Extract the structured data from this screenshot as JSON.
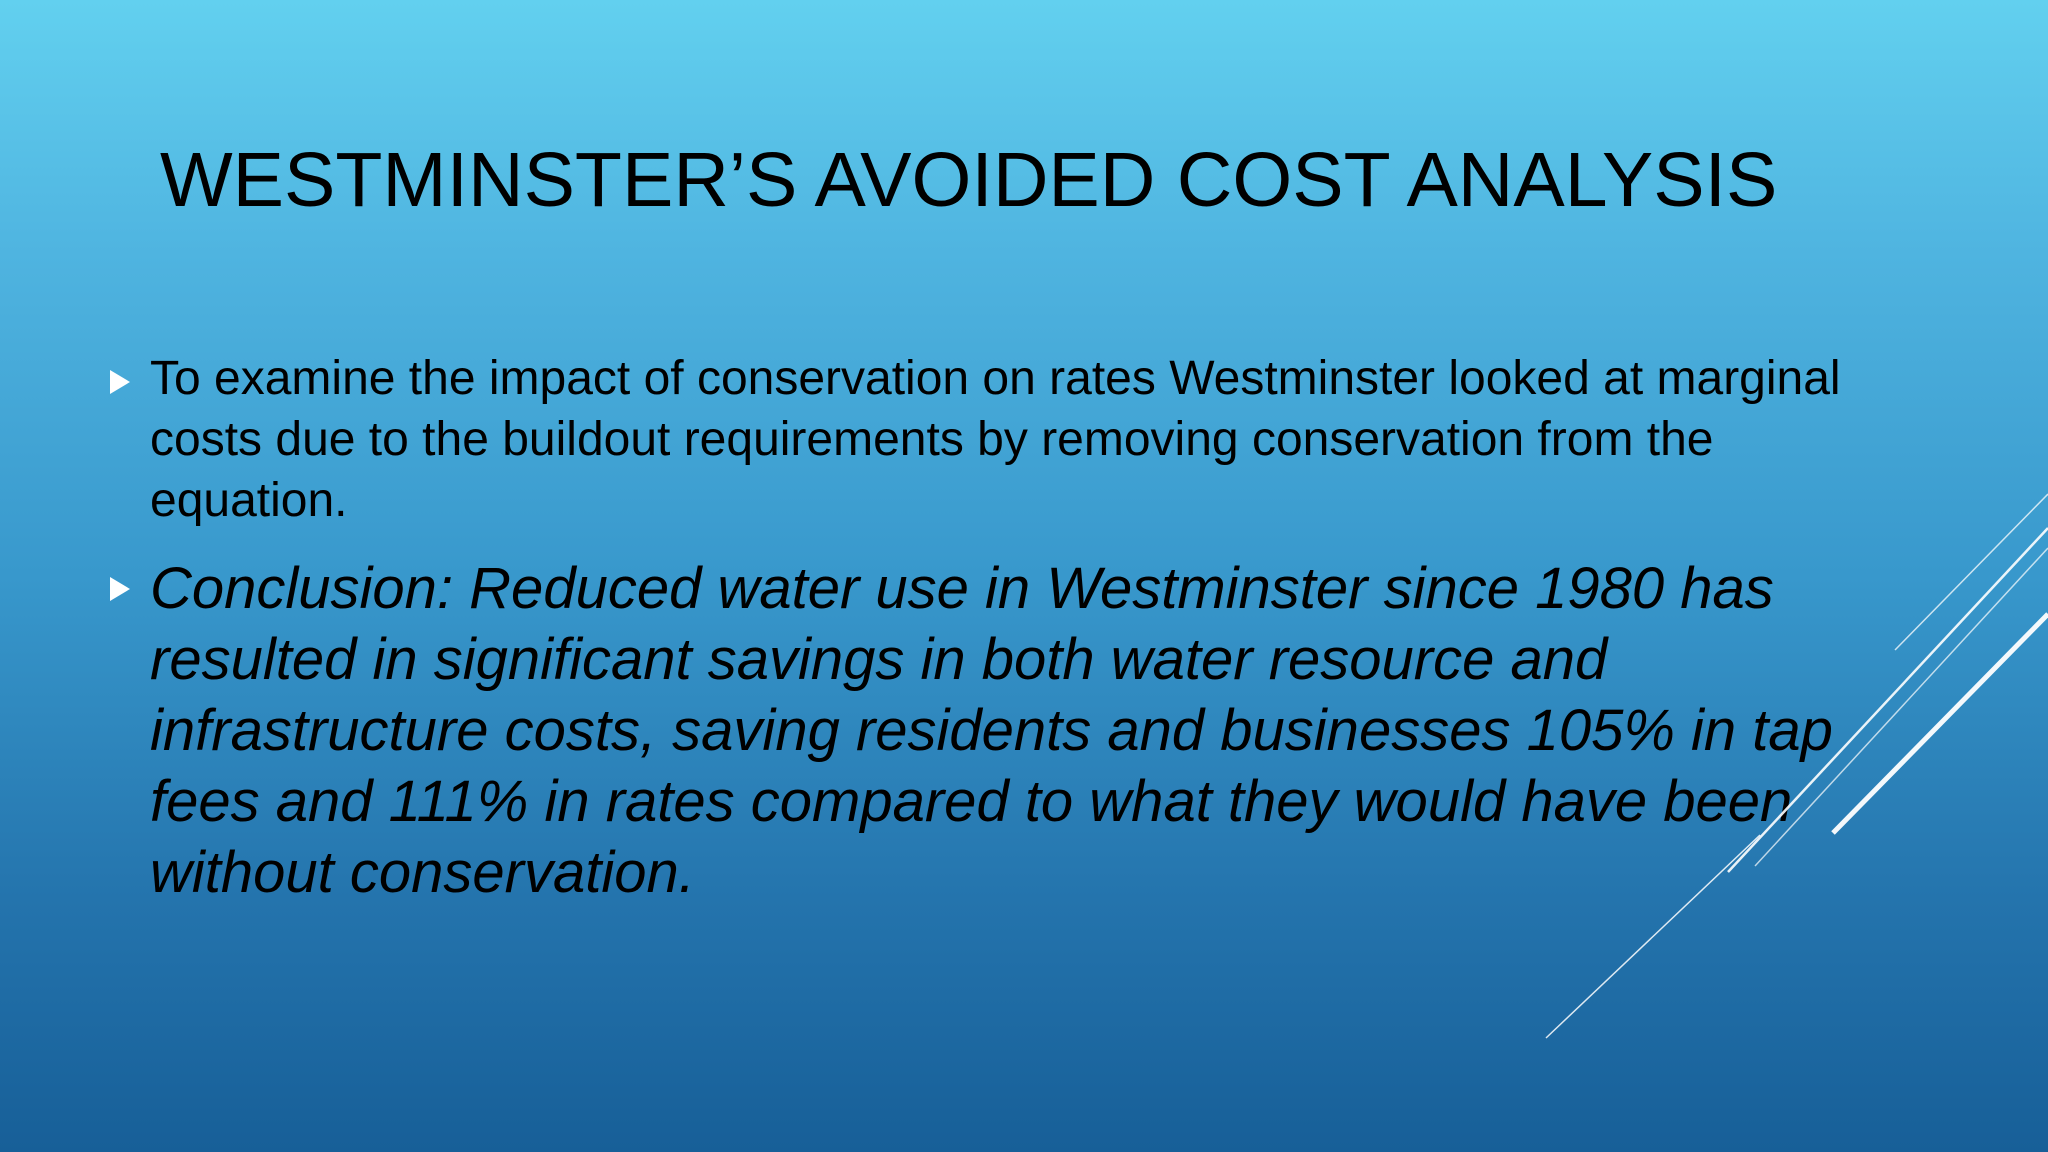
{
  "slide": {
    "title": "WESTMINSTER’S AVOIDED COST ANALYSIS",
    "bullets": [
      {
        "text": "To examine the impact of conservation on rates Westminster looked at marginal costs due to the buildout requirements by removing conservation from the equation."
      },
      {
        "text": "Conclusion: Reduced water use in Westminster since 1980 has resulted in significant savings in both water resource and infrastructure costs, saving residents and businesses 105% in tap fees and 111% in rates compared to what they would have been without conservation."
      }
    ],
    "bullet_icon": "triangle-right-icon",
    "colors": {
      "background_top": "#62d0ef",
      "background_bottom": "#175f98",
      "text": "#000000",
      "bullet": "#ffffff",
      "decoration_lines": "#ffffff"
    }
  }
}
